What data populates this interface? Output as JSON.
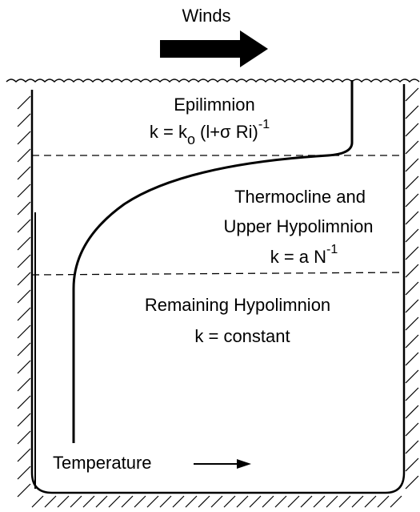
{
  "wind_label": "Winds",
  "layers": [
    {
      "name": "Epilimnion",
      "formula": [
        "k = k",
        "o",
        "(l+σ Ri)",
        "-1"
      ]
    },
    {
      "name": [
        "Thermocline and",
        "Upper Hypolimnion"
      ],
      "formula": [
        "k = a N",
        "-1"
      ]
    },
    {
      "name": "Remaining  Hypolimnion",
      "formula": "k = constant"
    }
  ],
  "axis_label": "Temperature"
}
